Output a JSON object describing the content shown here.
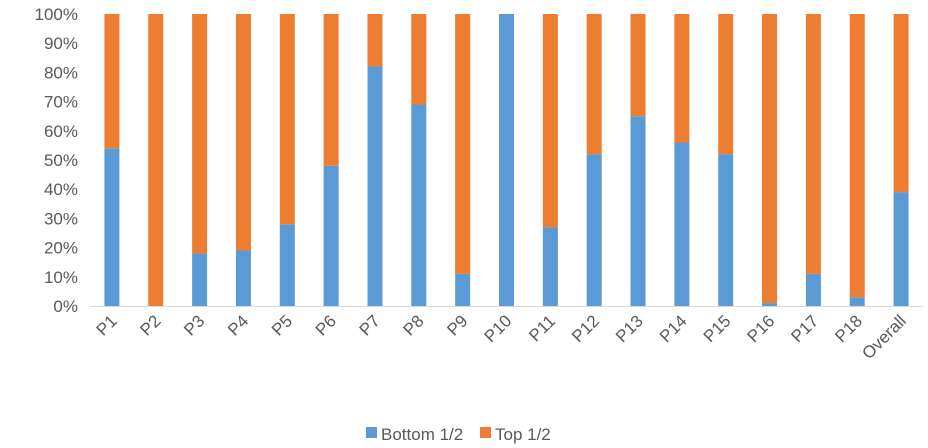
{
  "chart_data": {
    "type": "bar",
    "stacked": true,
    "percent": true,
    "categories": [
      "P1",
      "P2",
      "P3",
      "P4",
      "P5",
      "P6",
      "P7",
      "P8",
      "P9",
      "P10",
      "P11",
      "P12",
      "P13",
      "P14",
      "P15",
      "P16",
      "P17",
      "P18",
      "Overall"
    ],
    "series": [
      {
        "name": "Bottom 1/2",
        "color": "#5B9BD5",
        "values": [
          54,
          0,
          18,
          19,
          28,
          48,
          82,
          69,
          11,
          100,
          27,
          52,
          65,
          56,
          52,
          1,
          11,
          3,
          39
        ]
      },
      {
        "name": "Top 1/2",
        "color": "#ED7D31",
        "values": [
          46,
          100,
          82,
          81,
          72,
          52,
          18,
          31,
          89,
          0,
          73,
          48,
          35,
          44,
          48,
          99,
          89,
          97,
          61
        ]
      }
    ],
    "y_ticks": [
      "0%",
      "10%",
      "20%",
      "30%",
      "40%",
      "50%",
      "60%",
      "70%",
      "80%",
      "90%",
      "100%"
    ],
    "ylim": [
      0,
      100
    ],
    "grid": false,
    "legend_position": "bottom",
    "title": "",
    "xlabel": "",
    "ylabel": ""
  }
}
